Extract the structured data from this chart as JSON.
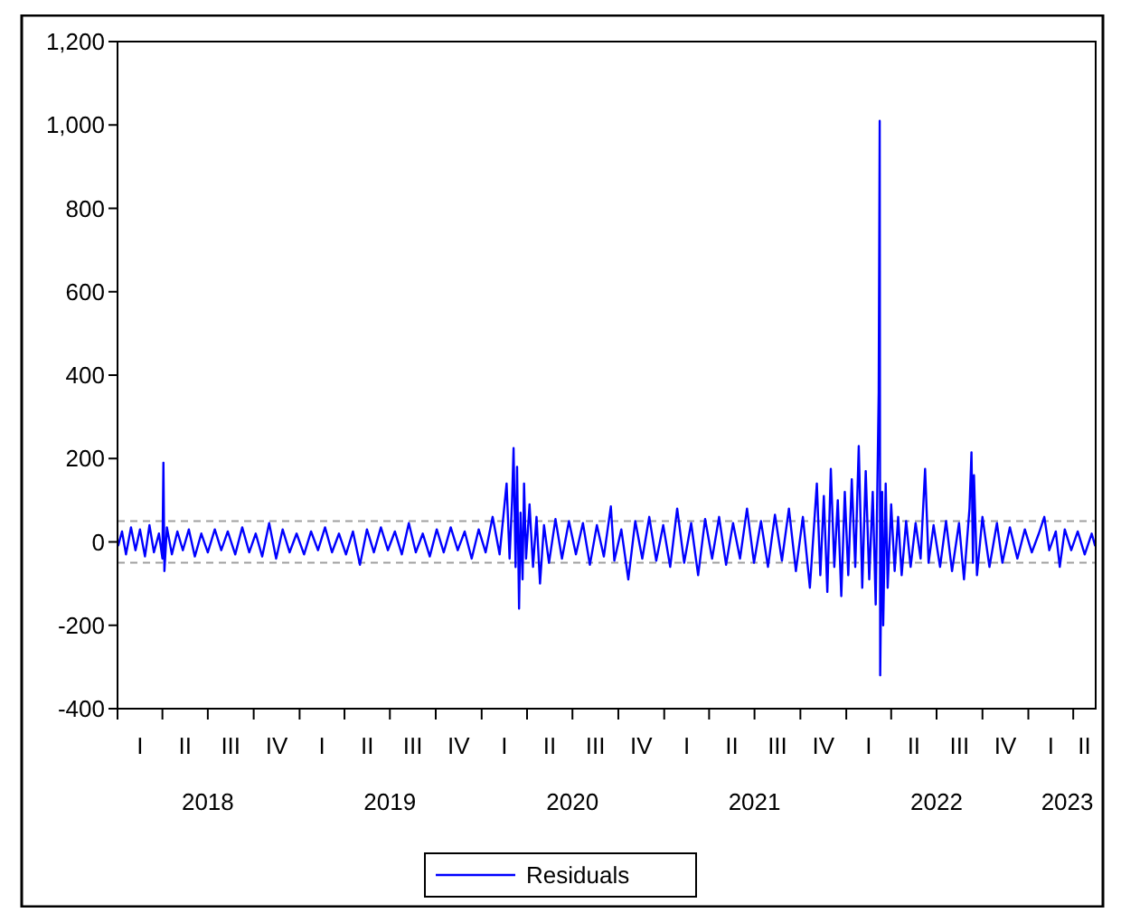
{
  "chart_data": {
    "type": "line",
    "xlim": [
      "2018-01-01",
      "2023-05-16"
    ],
    "ylim": [
      -400,
      1200
    ],
    "yticks": [
      -400,
      -200,
      0,
      200,
      400,
      600,
      800,
      {
        "value": 1000,
        "label": "1,000"
      },
      {
        "value": 1200,
        "label": "1,200"
      }
    ],
    "xticks": [
      {
        "value": "2018-01-01",
        "label": null
      },
      {
        "value": "2018-04-01",
        "label": null
      },
      {
        "value": "2018-07-01",
        "label": null
      },
      {
        "value": "2018-10-01",
        "label": null
      },
      {
        "value": "2019-01-01",
        "label": null
      },
      {
        "value": "2019-04-01",
        "label": null
      },
      {
        "value": "2019-07-01",
        "label": null
      },
      {
        "value": "2019-10-01",
        "label": null
      },
      {
        "value": "2020-01-01",
        "label": null
      },
      {
        "value": "2020-04-01",
        "label": null
      },
      {
        "value": "2020-07-01",
        "label": null
      },
      {
        "value": "2020-10-01",
        "label": null
      },
      {
        "value": "2021-01-01",
        "label": null
      },
      {
        "value": "2021-04-01",
        "label": null
      },
      {
        "value": "2021-07-01",
        "label": null
      },
      {
        "value": "2021-10-01",
        "label": null
      },
      {
        "value": "2022-01-01",
        "label": null
      },
      {
        "value": "2022-04-01",
        "label": null
      },
      {
        "value": "2022-07-01",
        "label": null
      },
      {
        "value": "2022-10-01",
        "label": null
      },
      {
        "value": "2023-01-01",
        "label": null
      },
      {
        "value": "2023-04-01",
        "label": null
      },
      {
        "value": "2018-07-01",
        "label": "2018"
      },
      {
        "value": "2019-07-01",
        "label": "2019"
      },
      {
        "value": "2020-07-01",
        "label": "2020"
      },
      {
        "value": "2021-07-01",
        "label": "2021"
      },
      {
        "value": "2022-07-01",
        "label": "2022"
      },
      {
        "value": "2023-03-20",
        "label": "2023"
      }
    ],
    "ref_lines": [
      {
        "axis": "y",
        "value": 50,
        "color": "#a0a0a0",
        "line_style": "dashed"
      },
      {
        "axis": "y",
        "value": -50,
        "color": "#a0a0a0",
        "line_style": "dashed"
      }
    ],
    "annotations": [
      "I",
      "II",
      "III",
      "IV",
      "I",
      "II",
      "III",
      "IV",
      "I",
      "II",
      "III",
      "IV",
      "I",
      "II",
      "III",
      "IV",
      "I",
      "II",
      "III",
      "IV",
      "I",
      "II"
    ],
    "legend": "bottom",
    "grid": false,
    "marker": "none",
    "line_style": "solid",
    "series": [
      {
        "name": "Residuals",
        "color": "#0000ff",
        "x": [
          "2018-01-02",
          "2018-01-10",
          "2018-01-18",
          "2018-01-28",
          "2018-02-06",
          "2018-02-15",
          "2018-02-25",
          "2018-03-06",
          "2018-03-15",
          "2018-03-25",
          "2018-04-01",
          "2018-04-03",
          "2018-04-05",
          "2018-04-10",
          "2018-04-20",
          "2018-05-01",
          "2018-05-12",
          "2018-05-24",
          "2018-06-05",
          "2018-06-18",
          "2018-07-01",
          "2018-07-15",
          "2018-07-28",
          "2018-08-10",
          "2018-08-25",
          "2018-09-08",
          "2018-09-22",
          "2018-10-05",
          "2018-10-18",
          "2018-11-01",
          "2018-11-15",
          "2018-11-28",
          "2018-12-12",
          "2018-12-26",
          "2019-01-10",
          "2019-01-24",
          "2019-02-07",
          "2019-02-21",
          "2019-03-07",
          "2019-03-21",
          "2019-04-04",
          "2019-04-18",
          "2019-05-02",
          "2019-05-16",
          "2019-05-30",
          "2019-06-13",
          "2019-06-27",
          "2019-07-11",
          "2019-07-25",
          "2019-08-08",
          "2019-08-22",
          "2019-09-05",
          "2019-09-19",
          "2019-10-03",
          "2019-10-17",
          "2019-10-31",
          "2019-11-14",
          "2019-11-28",
          "2019-12-12",
          "2019-12-26",
          "2020-01-09",
          "2020-01-23",
          "2020-02-06",
          "2020-02-20",
          "2020-02-26",
          "2020-03-02",
          "2020-03-05",
          "2020-03-09",
          "2020-03-12",
          "2020-03-16",
          "2020-03-19",
          "2020-03-23",
          "2020-03-26",
          "2020-03-30",
          "2020-04-06",
          "2020-04-13",
          "2020-04-20",
          "2020-04-27",
          "2020-05-05",
          "2020-05-15",
          "2020-05-28",
          "2020-06-10",
          "2020-06-24",
          "2020-07-08",
          "2020-07-22",
          "2020-08-05",
          "2020-08-19",
          "2020-09-02",
          "2020-09-16",
          "2020-09-23",
          "2020-10-07",
          "2020-10-21",
          "2020-11-04",
          "2020-11-18",
          "2020-12-02",
          "2020-12-16",
          "2020-12-30",
          "2021-01-13",
          "2021-01-27",
          "2021-02-10",
          "2021-02-24",
          "2021-03-10",
          "2021-03-24",
          "2021-04-07",
          "2021-04-21",
          "2021-05-05",
          "2021-05-19",
          "2021-06-02",
          "2021-06-16",
          "2021-06-30",
          "2021-07-14",
          "2021-07-28",
          "2021-08-11",
          "2021-08-25",
          "2021-09-08",
          "2021-09-22",
          "2021-10-06",
          "2021-10-20",
          "2021-11-03",
          "2021-11-10",
          "2021-11-17",
          "2021-11-24",
          "2021-12-01",
          "2021-12-08",
          "2021-12-15",
          "2021-12-22",
          "2021-12-29",
          "2022-01-05",
          "2022-01-12",
          "2022-01-19",
          "2022-01-26",
          "2022-02-02",
          "2022-02-09",
          "2022-02-16",
          "2022-02-23",
          "2022-03-01",
          "2022-03-07",
          "2022-03-09",
          "2022-03-10",
          "2022-03-14",
          "2022-03-16",
          "2022-03-21",
          "2022-03-25",
          "2022-04-01",
          "2022-04-08",
          "2022-04-15",
          "2022-04-22",
          "2022-05-01",
          "2022-05-10",
          "2022-05-20",
          "2022-05-30",
          "2022-06-08",
          "2022-06-15",
          "2022-06-25",
          "2022-07-08",
          "2022-07-20",
          "2022-08-01",
          "2022-08-15",
          "2022-08-25",
          "2022-09-05",
          "2022-09-09",
          "2022-09-12",
          "2022-09-14",
          "2022-09-20",
          "2022-10-01",
          "2022-10-15",
          "2022-10-30",
          "2022-11-10",
          "2022-11-25",
          "2022-12-10",
          "2022-12-25",
          "2023-01-08",
          "2023-01-22",
          "2023-02-02",
          "2023-02-12",
          "2023-02-25",
          "2023-03-05",
          "2023-03-15",
          "2023-03-28",
          "2023-04-10",
          "2023-04-24",
          "2023-05-08",
          "2023-05-15"
        ],
        "values": [
          -10,
          25,
          -30,
          35,
          -20,
          30,
          -35,
          40,
          -25,
          20,
          -40,
          190,
          -70,
          35,
          -30,
          25,
          -20,
          30,
          -35,
          20,
          -25,
          30,
          -20,
          25,
          -30,
          35,
          -25,
          20,
          -35,
          45,
          -40,
          30,
          -25,
          20,
          -30,
          25,
          -20,
          35,
          -25,
          20,
          -30,
          25,
          -55,
          30,
          -25,
          35,
          -20,
          25,
          -30,
          45,
          -25,
          20,
          -35,
          30,
          -25,
          35,
          -20,
          25,
          -40,
          30,
          -25,
          60,
          -30,
          140,
          -40,
          100,
          225,
          -60,
          180,
          -160,
          70,
          -90,
          140,
          -40,
          90,
          -60,
          60,
          -100,
          40,
          -50,
          55,
          -40,
          50,
          -30,
          45,
          -55,
          40,
          -35,
          85,
          -45,
          30,
          -90,
          50,
          -40,
          60,
          -45,
          40,
          -60,
          80,
          -50,
          45,
          -80,
          55,
          -40,
          60,
          -55,
          45,
          -40,
          80,
          -50,
          50,
          -60,
          65,
          -45,
          80,
          -70,
          60,
          -110,
          140,
          -80,
          110,
          -120,
          175,
          -60,
          100,
          -130,
          120,
          -80,
          150,
          -60,
          230,
          -110,
          170,
          -90,
          120,
          -150,
          360,
          1010,
          -320,
          120,
          -200,
          140,
          -110,
          90,
          -70,
          60,
          -80,
          50,
          -60,
          45,
          -40,
          175,
          -50,
          40,
          -60,
          50,
          -70,
          45,
          -90,
          80,
          215,
          -50,
          160,
          -80,
          60,
          -60,
          45,
          -50,
          35,
          -40,
          30,
          -25,
          20,
          60,
          -20,
          25,
          -60,
          30,
          -20,
          25,
          -30,
          20,
          -10
        ]
      }
    ]
  }
}
